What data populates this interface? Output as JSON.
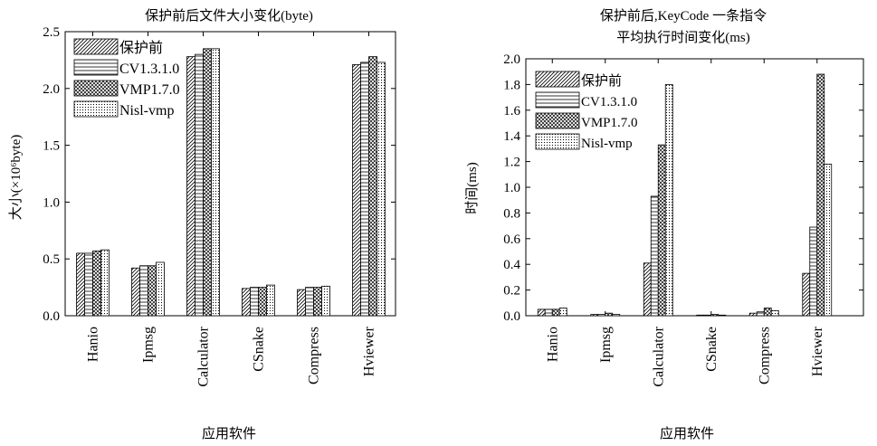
{
  "chart_data": [
    {
      "type": "bar",
      "title": "保护前后文件大小变化(byte)",
      "title_lines": [
        "保护前后文件大小变化(byte)"
      ],
      "xlabel": "应用软件",
      "ylabel": "大小(×10⁶byte)",
      "categories": [
        "Hanio",
        "Ipmsg",
        "Calculator",
        "CSnake",
        "Compress",
        "Hviewer"
      ],
      "ylim": [
        0,
        2.5
      ],
      "yticks": [
        0.0,
        0.5,
        1.0,
        1.5,
        2.0,
        2.5
      ],
      "ytick_labels": [
        "0.0",
        "0.5",
        "1.0",
        "1.5",
        "2.0",
        "2.5"
      ],
      "legend_position": "top-left",
      "series": [
        {
          "name": "保护前",
          "pattern": "diag",
          "values": [
            0.55,
            0.42,
            2.28,
            0.24,
            0.23,
            2.21
          ]
        },
        {
          "name": "CV1.3.1.0",
          "pattern": "horiz",
          "values": [
            0.55,
            0.44,
            2.3,
            0.25,
            0.25,
            2.23
          ]
        },
        {
          "name": "VMP1.7.0",
          "pattern": "cross",
          "values": [
            0.57,
            0.44,
            2.35,
            0.25,
            0.25,
            2.28
          ]
        },
        {
          "name": "Nisl-vmp",
          "pattern": "dots",
          "values": [
            0.58,
            0.47,
            2.35,
            0.27,
            0.26,
            2.23
          ]
        }
      ]
    },
    {
      "type": "bar",
      "title": "保护前后,KeyCode 一条指令 平均执行时间变化(ms)",
      "title_lines": [
        "保护前后,KeyCode 一条指令",
        "平均执行时间变化(ms)"
      ],
      "xlabel": "应用软件",
      "ylabel": "时间(ms)",
      "categories": [
        "Hanio",
        "Ipmsg",
        "Calculator",
        "CSnake",
        "Compress",
        "Hviewer"
      ],
      "ylim": [
        0,
        2.0
      ],
      "yticks": [
        0.0,
        0.2,
        0.4,
        0.6,
        0.8,
        1.0,
        1.2,
        1.4,
        1.6,
        1.8,
        2.0
      ],
      "ytick_labels": [
        "0.0",
        "0.2",
        "0.4",
        "0.6",
        "0.8",
        "1.0",
        "1.2",
        "1.4",
        "1.6",
        "1.8",
        "2.0"
      ],
      "legend_position": "top-left",
      "series": [
        {
          "name": "保护前",
          "pattern": "diag",
          "values": [
            0.05,
            0.01,
            0.41,
            0.005,
            0.02,
            0.33
          ]
        },
        {
          "name": "CV1.3.1.0",
          "pattern": "horiz",
          "values": [
            0.05,
            0.01,
            0.93,
            0.005,
            0.03,
            0.69
          ]
        },
        {
          "name": "VMP1.7.0",
          "pattern": "cross",
          "values": [
            0.05,
            0.02,
            1.33,
            0.01,
            0.06,
            1.88
          ]
        },
        {
          "name": "Nisl-vmp",
          "pattern": "dots",
          "values": [
            0.06,
            0.01,
            1.8,
            0.005,
            0.04,
            1.18
          ]
        }
      ]
    }
  ]
}
